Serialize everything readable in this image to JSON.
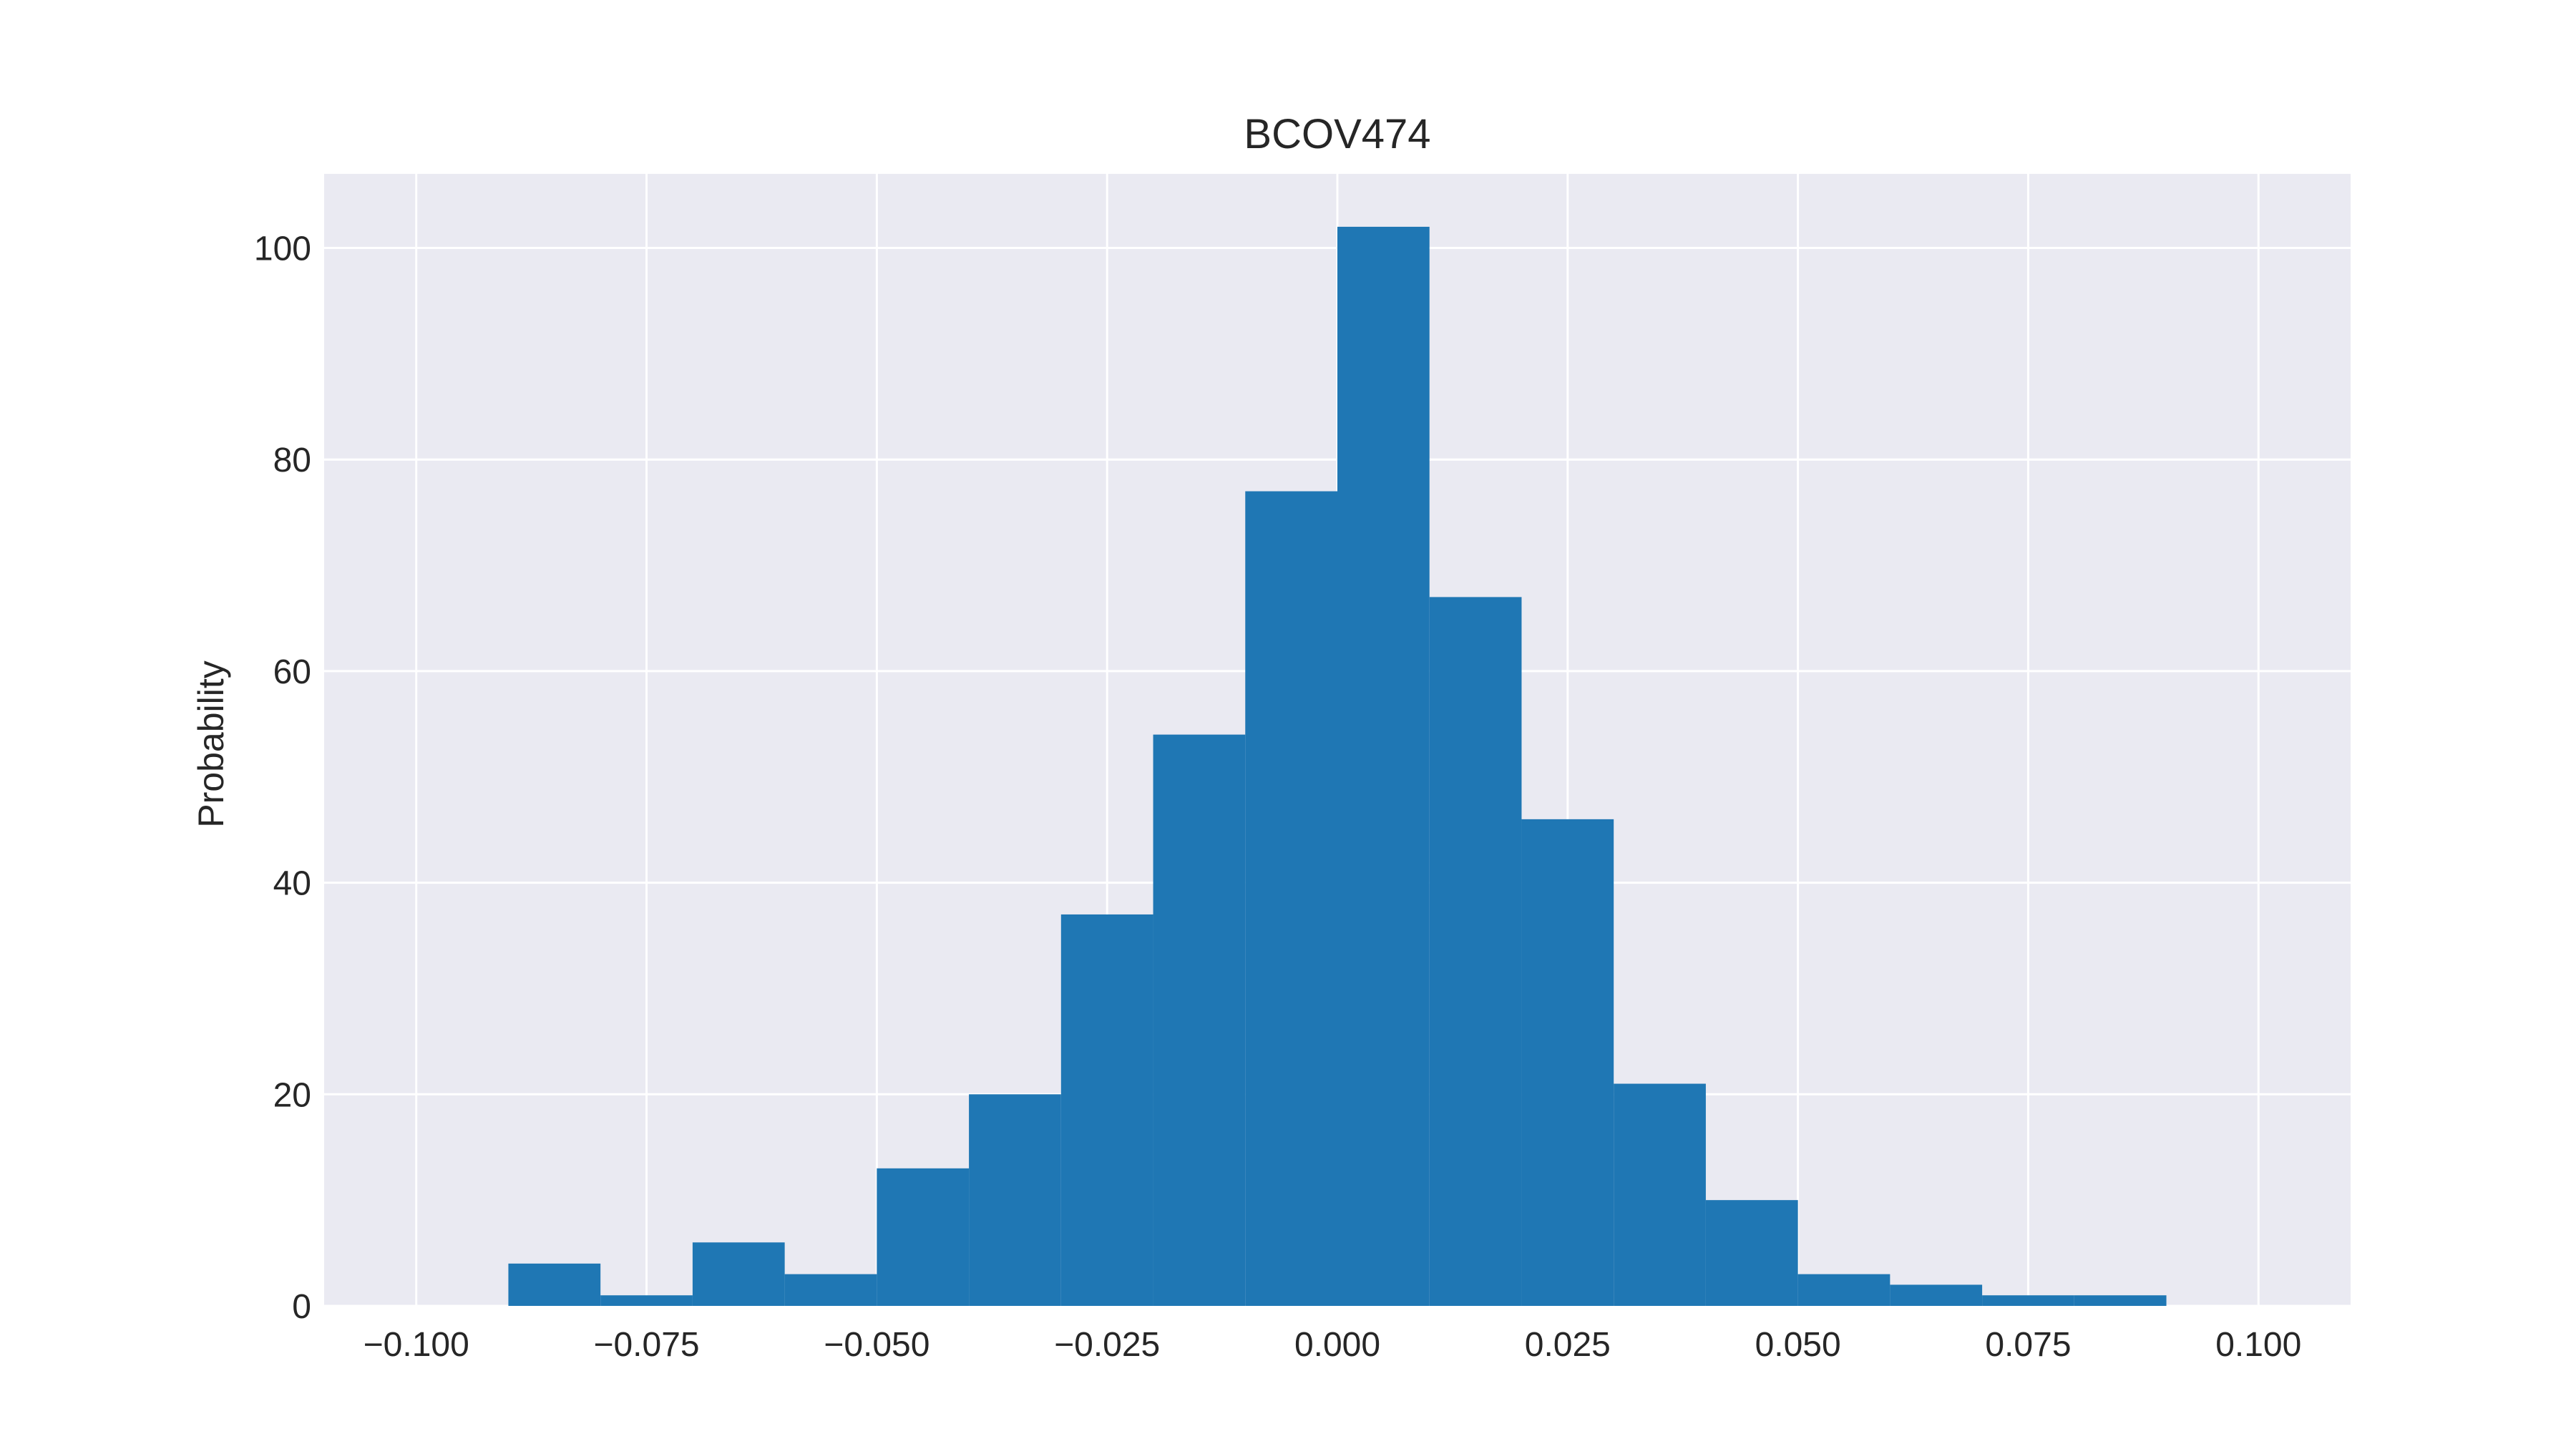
{
  "chart_data": {
    "type": "bar",
    "title": "BCOV474",
    "xlabel": "",
    "ylabel": "Probability",
    "xlim": [
      -0.11,
      0.11
    ],
    "ylim": [
      0,
      107
    ],
    "grid": true,
    "bar_color": "#1f77b4",
    "background_color": "#eaeaf2",
    "grid_color": "#ffffff",
    "x_ticks": [
      -0.1,
      -0.075,
      -0.05,
      -0.025,
      0.0,
      0.025,
      0.05,
      0.075,
      0.1
    ],
    "x_tick_labels": [
      "−0.100",
      "−0.075",
      "−0.050",
      "−0.025",
      "0.000",
      "0.025",
      "0.050",
      "0.075",
      "0.100"
    ],
    "y_ticks": [
      0,
      20,
      40,
      60,
      80,
      100
    ],
    "y_tick_labels": [
      "0",
      "20",
      "40",
      "60",
      "80",
      "100"
    ],
    "bin_edges": [
      -0.09,
      -0.08,
      -0.07,
      -0.06,
      -0.05,
      -0.04,
      -0.03,
      -0.02,
      -0.01,
      0.0,
      0.01,
      0.02,
      0.03,
      0.04,
      0.05,
      0.06,
      0.07,
      0.08,
      0.09
    ],
    "values": [
      4,
      1,
      6,
      3,
      13,
      20,
      37,
      54,
      77,
      102,
      67,
      46,
      21,
      10,
      3,
      2,
      1,
      1
    ]
  }
}
